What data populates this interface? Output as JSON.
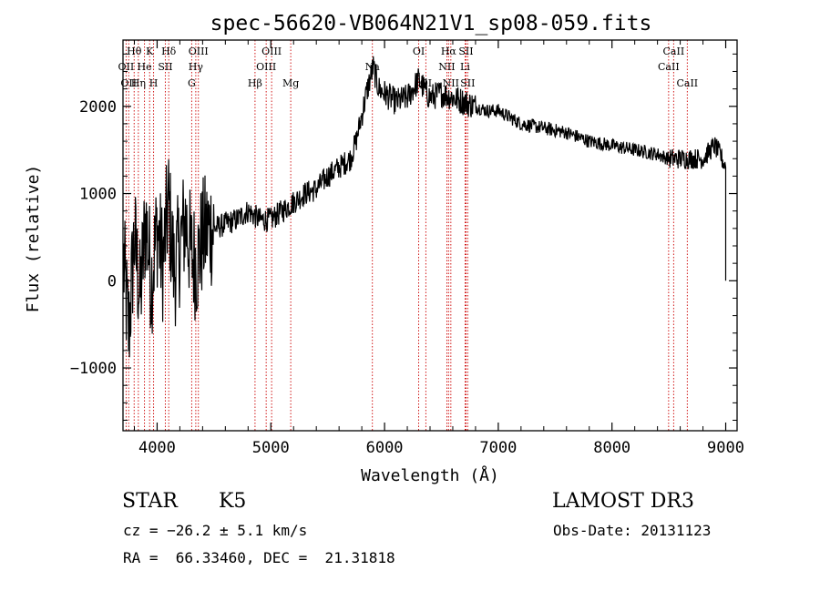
{
  "chart_data": {
    "type": "line",
    "title": "spec-56620-VB064N21V1_sp08-059.fits",
    "xlabel": "Wavelength (Å)",
    "ylabel": "Flux (relative)",
    "xlim": [
      3700,
      9100
    ],
    "ylim": [
      -1720,
      2760
    ],
    "xticks": [
      4000,
      5000,
      6000,
      7000,
      8000,
      9000
    ],
    "xtick_labels": [
      "4000",
      "5000",
      "6000",
      "7000",
      "8000",
      "9000"
    ],
    "yticks": [
      -1000,
      0,
      1000,
      2000
    ],
    "ytick_labels": [
      "−1000",
      "0",
      "1000",
      "2000"
    ],
    "grid": false,
    "series": [
      {
        "name": "flux",
        "color": "#000000",
        "x": [
          3700,
          3750,
          3800,
          3850,
          3900,
          3950,
          4000,
          4050,
          4100,
          4150,
          4200,
          4250,
          4300,
          4350,
          4400,
          4450,
          4500,
          4600,
          4700,
          4800,
          4900,
          5000,
          5100,
          5200,
          5300,
          5400,
          5500,
          5600,
          5700,
          5750,
          5800,
          5850,
          5900,
          5950,
          6000,
          6100,
          6200,
          6300,
          6400,
          6500,
          6600,
          6700,
          6800,
          6900,
          7000,
          7200,
          7400,
          7600,
          7800,
          8000,
          8200,
          8400,
          8500,
          8600,
          8700,
          8800,
          8900,
          8950,
          9000
        ],
        "y": [
          300,
          -600,
          500,
          -200,
          700,
          0,
          600,
          200,
          900,
          100,
          400,
          700,
          300,
          200,
          500,
          600,
          600,
          650,
          700,
          800,
          700,
          700,
          800,
          900,
          1000,
          1050,
          1200,
          1300,
          1400,
          1600,
          1900,
          2200,
          2450,
          2200,
          2150,
          2050,
          2100,
          2300,
          2100,
          2150,
          2100,
          2050,
          2000,
          1950,
          1950,
          1800,
          1750,
          1700,
          1600,
          1550,
          1500,
          1450,
          1400,
          1400,
          1400,
          1400,
          1550,
          1450,
          1300
        ]
      }
    ],
    "lines": [
      {
        "x": 3727,
        "label": "OII",
        "row": 1
      },
      {
        "x": 3750,
        "label": "OII",
        "row": 2
      },
      {
        "x": 3798,
        "label": "Hθ",
        "row": 0
      },
      {
        "x": 3835,
        "label": "Hη",
        "row": 2
      },
      {
        "x": 3889,
        "label": "He",
        "row": 1
      },
      {
        "x": 3934,
        "label": "K",
        "row": 0
      },
      {
        "x": 3969,
        "label": "H",
        "row": 2
      },
      {
        "x": 4072,
        "label": "SII",
        "row": 1
      },
      {
        "x": 4102,
        "label": "Hδ",
        "row": 0
      },
      {
        "x": 4304,
        "label": "G",
        "row": 2
      },
      {
        "x": 4340,
        "label": "Hγ",
        "row": 1
      },
      {
        "x": 4363,
        "label": "OIII",
        "row": 0
      },
      {
        "x": 4861,
        "label": "Hβ",
        "row": 2
      },
      {
        "x": 4959,
        "label": "OIII",
        "row": 1
      },
      {
        "x": 5007,
        "label": "OIII",
        "row": 0
      },
      {
        "x": 5175,
        "label": "Mg",
        "row": 2
      },
      {
        "x": 5893,
        "label": "Na",
        "row": 1
      },
      {
        "x": 6300,
        "label": "OI",
        "row": 0
      },
      {
        "x": 6363,
        "label": "OI",
        "row": 2
      },
      {
        "x": 6548,
        "label": "NII",
        "row": 1
      },
      {
        "x": 6563,
        "label": "Hα",
        "row": 0
      },
      {
        "x": 6583,
        "label": "NII",
        "row": 2
      },
      {
        "x": 6708,
        "label": "Li",
        "row": 1
      },
      {
        "x": 6716,
        "label": "SII",
        "row": 0
      },
      {
        "x": 6731,
        "label": "SII",
        "row": 2
      },
      {
        "x": 8498,
        "label": "CaII",
        "row": 1
      },
      {
        "x": 8542,
        "label": "CaII",
        "row": 0
      },
      {
        "x": 8662,
        "label": "CaII",
        "row": 2
      }
    ]
  },
  "info": {
    "object_class": "STAR",
    "subclass": "K5",
    "survey": "LAMOST DR3",
    "redshift_line": "cz = −26.2 ± 5.1 km/s",
    "obs_date": "Obs-Date: 20131123",
    "coords": "RA =  66.33460, DEC =  21.31818"
  },
  "colors": {
    "line": "#000000",
    "marker": "#cc0000",
    "axes": "#000000"
  }
}
